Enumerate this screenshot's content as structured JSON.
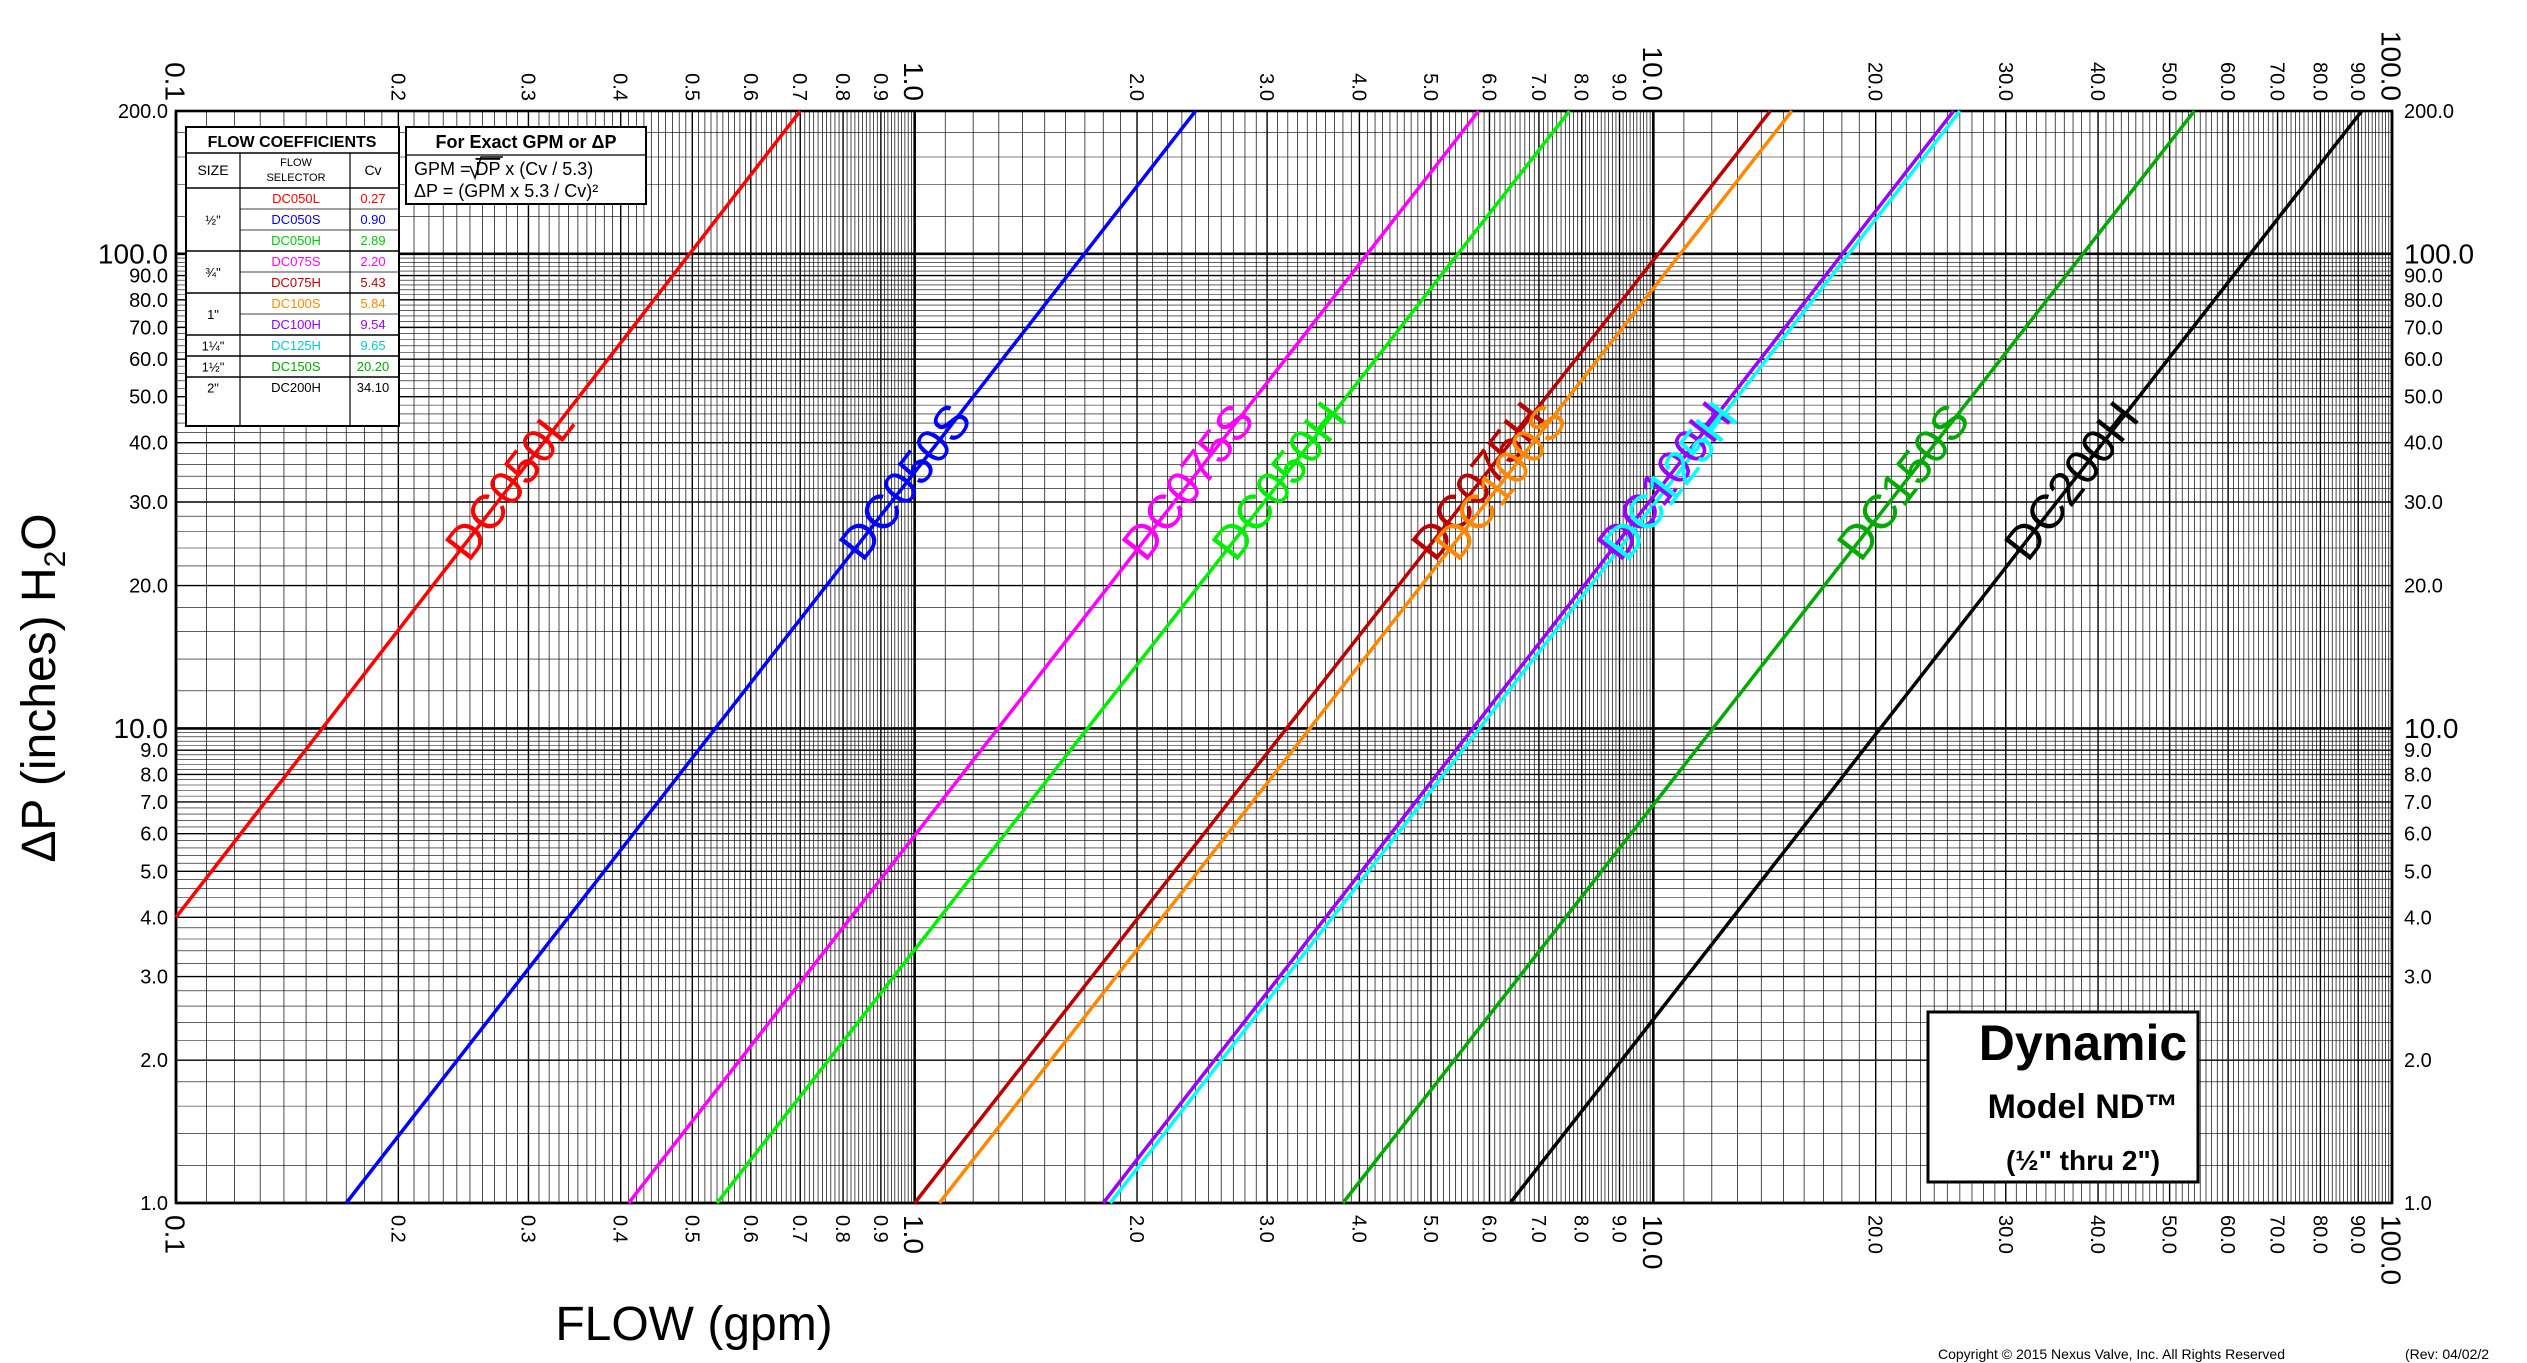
{
  "chart_data": {
    "type": "line",
    "x_scale": "log",
    "y_scale": "log",
    "xlim": [
      0.1,
      100.0
    ],
    "ylim": [
      1.0,
      200.0
    ],
    "grid": true,
    "xlabel": "FLOW (gpm)",
    "ylabel_main": "ΔP (inches) H",
    "ylabel_sub": "2",
    "ylabel_tail": "O",
    "x_ticks": [
      {
        "v": 0.1,
        "label": "0.1",
        "major": true
      },
      {
        "v": 0.2,
        "label": "0.2"
      },
      {
        "v": 0.3,
        "label": "0.3"
      },
      {
        "v": 0.4,
        "label": "0.4"
      },
      {
        "v": 0.5,
        "label": "0.5"
      },
      {
        "v": 0.6,
        "label": "0.6"
      },
      {
        "v": 0.7,
        "label": "0.7"
      },
      {
        "v": 0.8,
        "label": "0.8"
      },
      {
        "v": 0.9,
        "label": "0.9"
      },
      {
        "v": 1.0,
        "label": "1.0",
        "major": true
      },
      {
        "v": 2.0,
        "label": "2.0"
      },
      {
        "v": 3.0,
        "label": "3.0"
      },
      {
        "v": 4.0,
        "label": "4.0"
      },
      {
        "v": 5.0,
        "label": "5.0"
      },
      {
        "v": 6.0,
        "label": "6.0"
      },
      {
        "v": 7.0,
        "label": "7.0"
      },
      {
        "v": 8.0,
        "label": "8.0"
      },
      {
        "v": 9.0,
        "label": "9.0"
      },
      {
        "v": 10.0,
        "label": "10.0",
        "major": true
      },
      {
        "v": 20.0,
        "label": "20.0"
      },
      {
        "v": 30.0,
        "label": "30.0"
      },
      {
        "v": 40.0,
        "label": "40.0"
      },
      {
        "v": 50.0,
        "label": "50.0"
      },
      {
        "v": 60.0,
        "label": "60.0"
      },
      {
        "v": 70.0,
        "label": "70.0"
      },
      {
        "v": 80.0,
        "label": "80.0"
      },
      {
        "v": 90.0,
        "label": "90.0"
      },
      {
        "v": 100.0,
        "label": "100.0",
        "major": true
      }
    ],
    "y_ticks": [
      {
        "v": 1.0,
        "label": "1.0"
      },
      {
        "v": 2.0,
        "label": "2.0"
      },
      {
        "v": 3.0,
        "label": "3.0"
      },
      {
        "v": 4.0,
        "label": "4.0"
      },
      {
        "v": 5.0,
        "label": "5.0"
      },
      {
        "v": 6.0,
        "label": "6.0"
      },
      {
        "v": 7.0,
        "label": "7.0"
      },
      {
        "v": 8.0,
        "label": "8.0"
      },
      {
        "v": 9.0,
        "label": "9.0"
      },
      {
        "v": 10.0,
        "label": "10.0",
        "major": true
      },
      {
        "v": 20.0,
        "label": "20.0"
      },
      {
        "v": 30.0,
        "label": "30.0"
      },
      {
        "v": 40.0,
        "label": "40.0"
      },
      {
        "v": 50.0,
        "label": "50.0"
      },
      {
        "v": 60.0,
        "label": "60.0"
      },
      {
        "v": 70.0,
        "label": "70.0"
      },
      {
        "v": 80.0,
        "label": "80.0"
      },
      {
        "v": 90.0,
        "label": "90.0"
      },
      {
        "v": 100.0,
        "label": "100.0",
        "major": true
      },
      {
        "v": 200.0,
        "label": "200.0"
      }
    ],
    "series": [
      {
        "name": "DC050L",
        "cv": 0.27,
        "color": "#ff0000",
        "x": [
          0.1,
          0.7
        ],
        "y": [
          4.0,
          200.0
        ]
      },
      {
        "name": "DC050S",
        "cv": 0.9,
        "color": "#0000ff",
        "x": [
          0.17,
          2.4
        ],
        "y": [
          1.0,
          200.0
        ]
      },
      {
        "name": "DC075S",
        "cv": 2.2,
        "color": "#ff00ff",
        "x": [
          0.41,
          5.8
        ],
        "y": [
          1.0,
          200.0
        ]
      },
      {
        "name": "DC050H",
        "cv": 2.89,
        "color": "#00ee00",
        "x": [
          0.54,
          7.7
        ],
        "y": [
          1.0,
          200.0
        ]
      },
      {
        "name": "DC075H",
        "cv": 5.43,
        "color": "#bb0000",
        "x": [
          1.0,
          14.4
        ],
        "y": [
          1.0,
          200.0
        ]
      },
      {
        "name": "DC100S",
        "cv": 5.84,
        "color": "#ff8800",
        "x": [
          1.08,
          15.4
        ],
        "y": [
          1.0,
          200.0
        ]
      },
      {
        "name": "DC100H",
        "cv": 9.54,
        "color": "#9900ff",
        "x": [
          1.8,
          25.5
        ],
        "y": [
          1.0,
          200.0
        ]
      },
      {
        "name": "DC125H",
        "cv": 9.65,
        "color": "#00ffff",
        "x": [
          1.84,
          26.0
        ],
        "y": [
          1.0,
          200.0
        ]
      },
      {
        "name": "DC150S",
        "cv": 20.2,
        "color": "#00aa00",
        "x": [
          3.8,
          54.0
        ],
        "y": [
          1.0,
          200.0
        ]
      },
      {
        "name": "DC200H",
        "cv": 34.1,
        "color": "#000000",
        "x": [
          6.4,
          91.0
        ],
        "y": [
          1.0,
          200.0
        ]
      }
    ]
  },
  "coeff_table": {
    "title": "FLOW COEFFICIENTS",
    "col_size": "SIZE",
    "col_selector": "FLOW\nSELECTOR",
    "col_selector_l1": "FLOW",
    "col_selector_l2": "SELECTOR",
    "col_cv": "Cv",
    "groups": [
      {
        "size": "½\"",
        "rows": [
          {
            "sel": "DC050L",
            "cv": "0.27",
            "color": "#ff0000"
          },
          {
            "sel": "DC050S",
            "cv": "0.90",
            "color": "#0000ff"
          },
          {
            "sel": "DC050H",
            "cv": "2.89",
            "color": "#00cc00"
          }
        ]
      },
      {
        "size": "¾\"",
        "rows": [
          {
            "sel": "DC075S",
            "cv": "2.20",
            "color": "#ff00ff"
          },
          {
            "sel": "DC075H",
            "cv": "5.43",
            "color": "#bb0000"
          }
        ]
      },
      {
        "size": "1\"",
        "rows": [
          {
            "sel": "DC100S",
            "cv": "5.84",
            "color": "#ff8800"
          },
          {
            "sel": "DC100H",
            "cv": "9.54",
            "color": "#9900ff"
          }
        ]
      },
      {
        "size": "1¼\"",
        "rows": [
          {
            "sel": "DC125H",
            "cv": "9.65",
            "color": "#00cccc"
          }
        ]
      },
      {
        "size": "1½\"",
        "rows": [
          {
            "sel": "DC150S",
            "cv": "20.20",
            "color": "#00aa00"
          }
        ]
      },
      {
        "size": "2\"",
        "rows": [
          {
            "sel": "DC200H",
            "cv": "34.10",
            "color": "#000000"
          }
        ]
      }
    ]
  },
  "formula_box": {
    "title": "For Exact GPM or ΔP",
    "line1_pre": "GPM = ",
    "line1_rad": "DP",
    "line1_post": " x (Cv / 5.3)",
    "line2": "ΔP = (GPM x 5.3 / Cv)²"
  },
  "product_box": {
    "title": "Dynamic",
    "model": "Model ND™",
    "sizes": "(½\" thru 2\")"
  },
  "footer": {
    "copyright": "Copyright © 2015 Nexus Valve, Inc.  All Rights Reserved",
    "rev": "(Rev:  04/02/2"
  }
}
